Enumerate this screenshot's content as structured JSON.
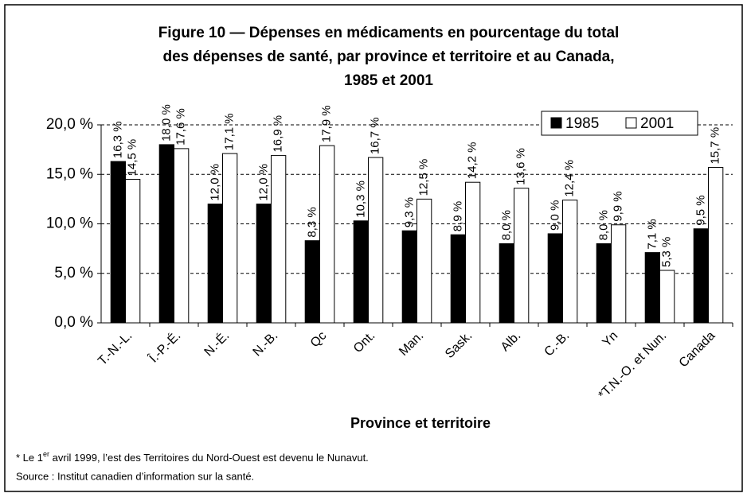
{
  "chart_data": {
    "type": "bar",
    "title": [
      "Figure 10 — Dépenses en médicaments en pourcentage du total",
      "des dépenses de santé, par province et territoire et au Canada,",
      "1985 et 2001"
    ],
    "x_label": "Province et territoire",
    "categories": [
      "T.-N.-L.",
      "Î.-P.-É.",
      "N.-É.",
      "N.-B.",
      "Qc",
      "Ont.",
      "Man.",
      "Sask.",
      "Alb.",
      "C.-B.",
      "Yn",
      "*T.N.-O. et Nun.",
      "Canada"
    ],
    "series": [
      {
        "name": "1985",
        "color": "#000000",
        "values": [
          16.3,
          18.0,
          12.0,
          12.0,
          8.3,
          10.3,
          9.3,
          8.9,
          8.0,
          9.0,
          8.0,
          7.1,
          9.5
        ],
        "value_labels": [
          "16,3 %",
          "18,0 %",
          "12,0 %",
          "12,0 %",
          "8,3 %",
          "10,3 %",
          "9,3 %",
          "8,9 %",
          "8,0 %",
          "9,0 %",
          "8,0 %",
          "7,1 %",
          "9,5 %"
        ]
      },
      {
        "name": "2001",
        "color": "#ffffff",
        "values": [
          14.5,
          17.6,
          17.1,
          16.9,
          17.9,
          16.7,
          12.5,
          14.2,
          13.6,
          12.4,
          9.9,
          5.3,
          15.7
        ],
        "value_labels": [
          "14,5 %",
          "17,6 %",
          "17,1 %",
          "16,9 %",
          "17,9 %",
          "16,7 %",
          "12,5 %",
          "14,2 %",
          "13,6 %",
          "12,4 %",
          "9,9 %",
          "5,3 %",
          "15,7 %"
        ]
      }
    ],
    "ylim": [
      0,
      20
    ],
    "yticks": [
      {
        "value": 0,
        "label": "0,0 %"
      },
      {
        "value": 5,
        "label": "5,0 %"
      },
      {
        "value": 10,
        "label": "10,0 %"
      },
      {
        "value": 15,
        "label": "15,0 %"
      },
      {
        "value": 20,
        "label": "20,0 %"
      }
    ],
    "grid": true,
    "legend": "top-right",
    "footnote": {
      "before": "* Le 1",
      "sup": "er",
      "after": " avril 1999, l’est des Territoires du Nord-Ouest est devenu le Nunavut."
    },
    "source": "Source : Institut canadien d’information sur la santé."
  }
}
